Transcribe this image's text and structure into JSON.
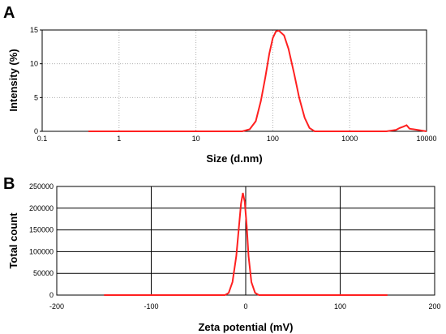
{
  "chart_data": [
    {
      "panel_label": "A",
      "type": "line",
      "xlabel": "Size (d.nm)",
      "ylabel": "Intensity (%)",
      "xscale": "log",
      "xlim": [
        0.1,
        10000
      ],
      "ylim": [
        0,
        15
      ],
      "xticks": [
        "0.1",
        "1",
        "10",
        "100",
        "1000",
        "10000"
      ],
      "yticks": [
        "0",
        "5",
        "10",
        "15"
      ],
      "grid": "dotted",
      "line_color": "#ff2020",
      "series": [
        {
          "x": [
            0.4,
            40,
            50,
            60,
            70,
            80,
            90,
            100,
            110,
            120,
            140,
            160,
            190,
            220,
            260,
            300,
            350,
            3000,
            4000,
            4500,
            5000,
            5500,
            6000,
            10000
          ],
          "y": [
            0,
            0,
            0.3,
            1.5,
            4.5,
            8.0,
            11.5,
            13.8,
            14.8,
            14.9,
            14.2,
            12.2,
            8.5,
            5.0,
            2.0,
            0.5,
            0,
            0,
            0.2,
            0.5,
            0.7,
            0.9,
            0.4,
            0
          ]
        }
      ]
    },
    {
      "panel_label": "B",
      "type": "line",
      "xlabel": "Zeta potential (mV)",
      "ylabel": "Total count",
      "xlim": [
        -200,
        200
      ],
      "ylim": [
        0,
        250000
      ],
      "xticks": [
        "-200",
        "-100",
        "0",
        "100",
        "200"
      ],
      "yticks": [
        "0",
        "50000",
        "100000",
        "150000",
        "200000",
        "250000"
      ],
      "grid": "solid",
      "line_color": "#ff2020",
      "series": [
        {
          "x": [
            -150,
            -22,
            -18,
            -14,
            -10,
            -7,
            -5,
            -3,
            -1,
            1,
            3,
            6,
            10,
            14,
            150
          ],
          "y": [
            0,
            0,
            5000,
            30000,
            90000,
            160000,
            210000,
            235000,
            215000,
            160000,
            90000,
            30000,
            5000,
            0,
            0
          ]
        }
      ]
    }
  ]
}
